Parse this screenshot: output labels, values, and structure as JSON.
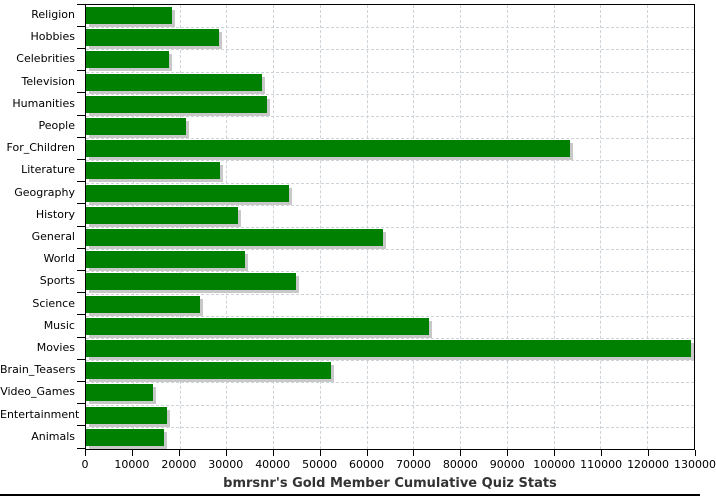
{
  "chart_data": {
    "type": "bar",
    "orientation": "horizontal",
    "title": "bmrsnr's Gold Member Cumulative Quiz Stats",
    "categories": [
      "Religion",
      "Hobbies",
      "Celebrities",
      "Television",
      "Humanities",
      "People",
      "For_Children",
      "Literature",
      "Geography",
      "History",
      "General",
      "World",
      "Sports",
      "Science",
      "Music",
      "Movies",
      "Brain_Teasers",
      "Video_Games",
      "Entertainment",
      "Animals"
    ],
    "values": [
      18300,
      28400,
      17700,
      37600,
      38600,
      21400,
      103400,
      28600,
      43300,
      32400,
      63400,
      34100,
      44900,
      24400,
      73400,
      129400,
      52300,
      14300,
      17400,
      16600
    ],
    "xlabel": "",
    "ylabel": "",
    "xlim": [
      0,
      130000
    ],
    "xticks": [
      0,
      10000,
      20000,
      30000,
      40000,
      50000,
      60000,
      70000,
      80000,
      90000,
      100000,
      110000,
      120000,
      130000
    ],
    "grid": "dashed, both directions",
    "legend_position": "none",
    "colors": {
      "bar": "#008000",
      "bar_shadow": "#c8c8c8",
      "grid": "#ccd3d9",
      "axis": "#000000",
      "tick_label": "#000000",
      "title": "#333333"
    }
  }
}
